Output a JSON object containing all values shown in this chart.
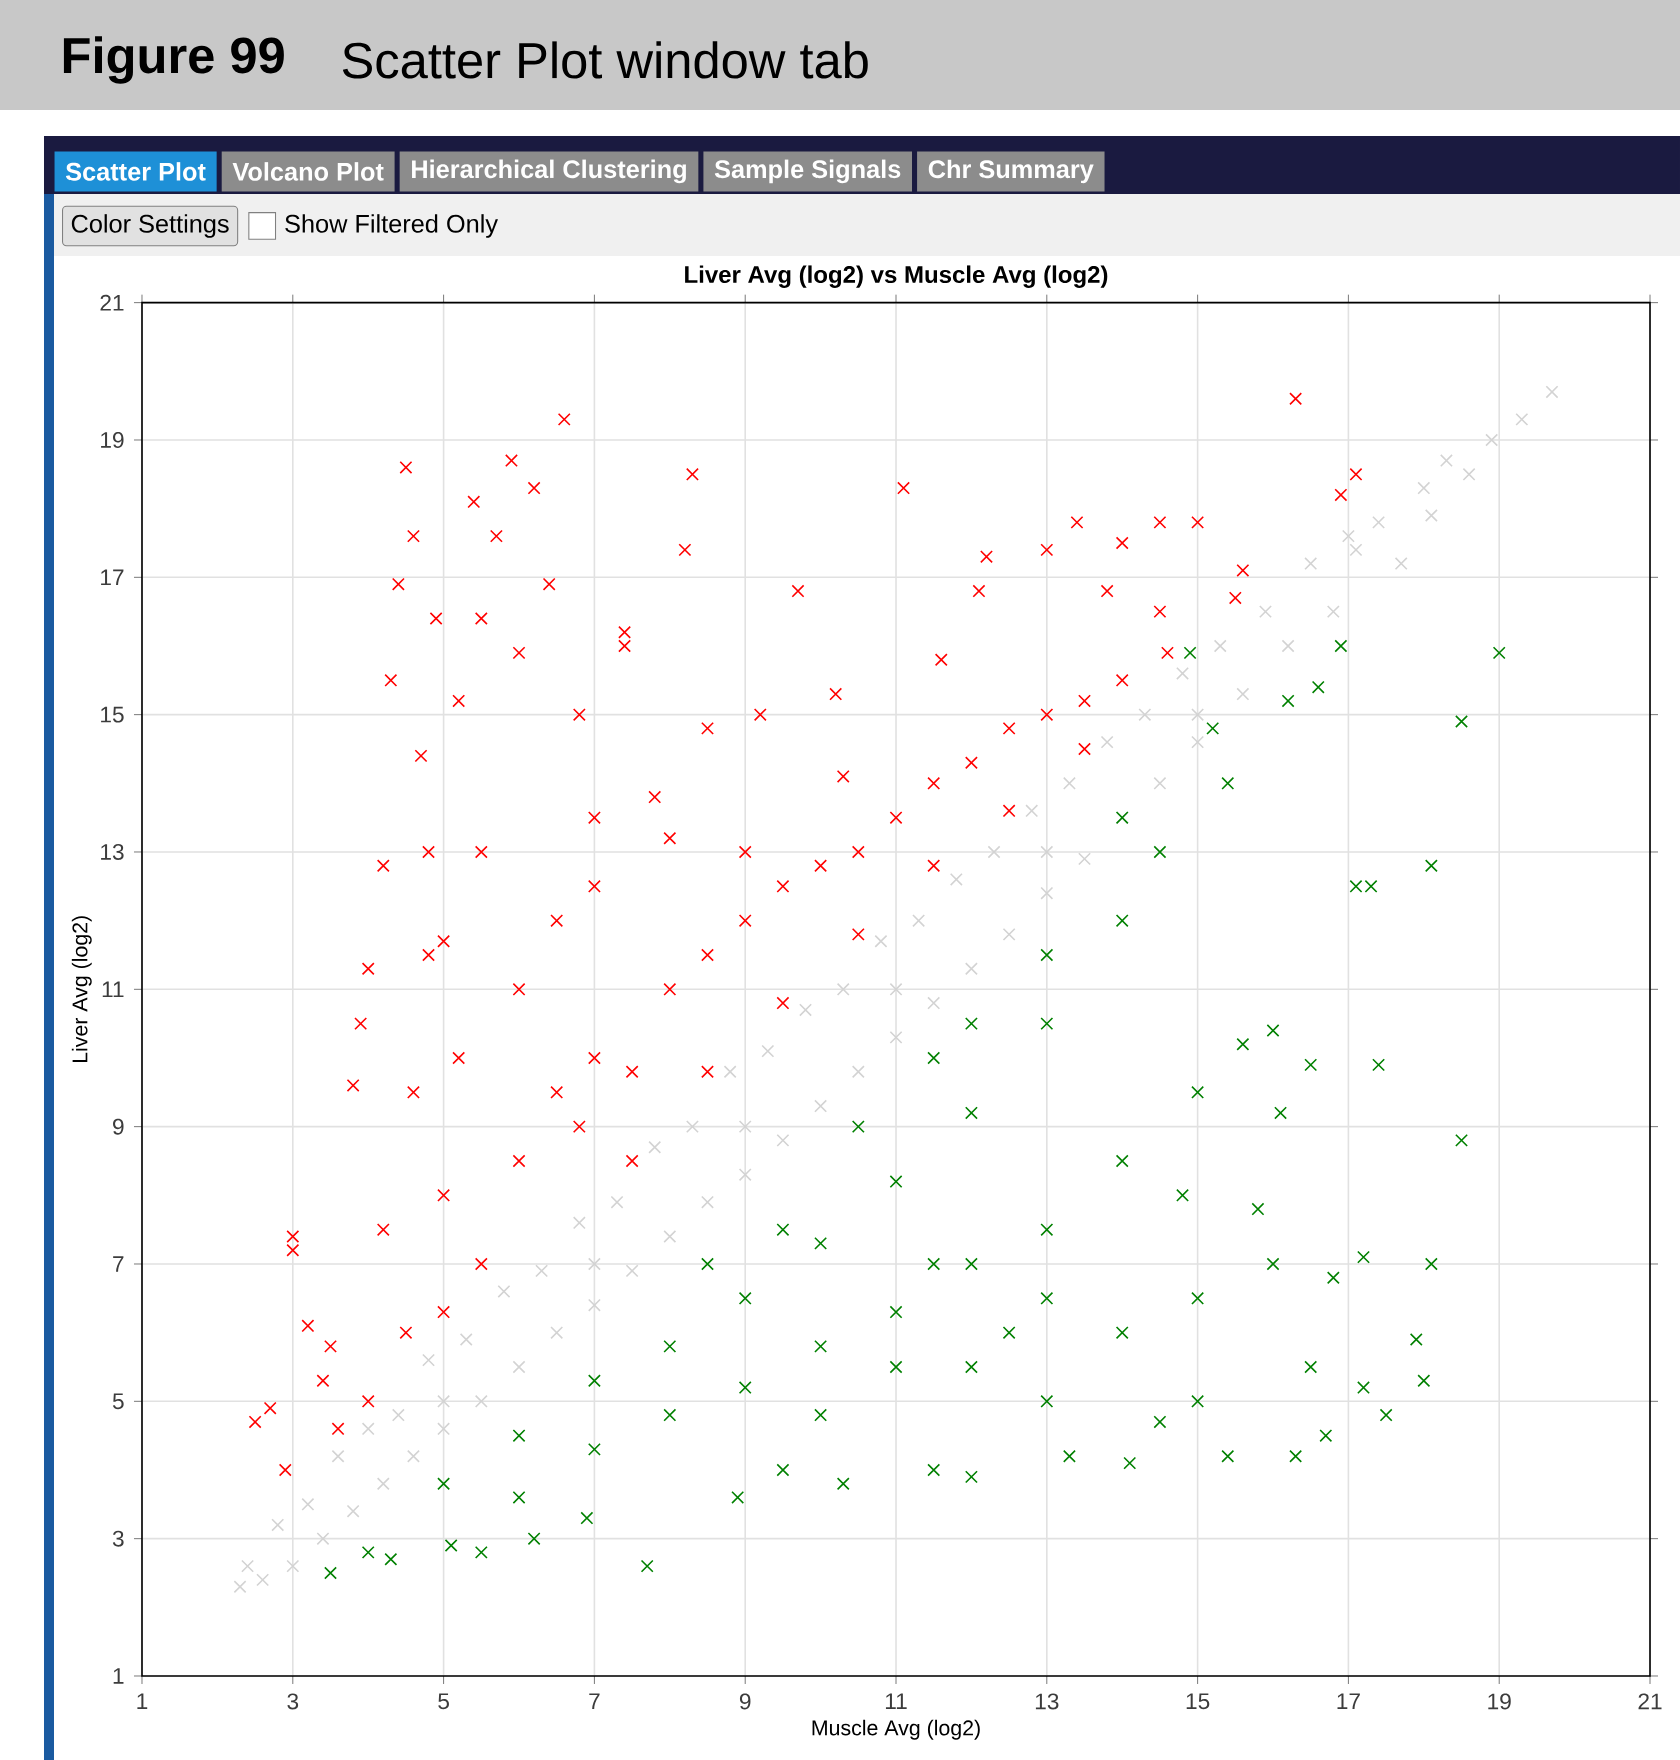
{
  "chart_data": {
    "type": "scatter",
    "title": "Liver Avg (log2) vs Muscle Avg (log2)",
    "xlabel": "Muscle Avg (log2)",
    "ylabel": "Liver Avg (log2)",
    "annotations": [
      "Figure 99",
      "Scatter Plot window tab",
      "Scatter Plot",
      "Volcano Plot",
      "Hierarchical Clustering",
      "Sample Signals",
      "Chr Summary",
      "Color Settings",
      "Show Filtered Only"
    ],
    "xlim": [
      1,
      21
    ],
    "ylim": [
      1,
      21
    ],
    "xticks": [
      1,
      3,
      5,
      7,
      9,
      11,
      13,
      15,
      17,
      19,
      21
    ],
    "yticks": [
      1,
      3,
      5,
      7,
      9,
      11,
      13,
      15,
      17,
      19,
      21
    ],
    "grid": true,
    "marker": "cross",
    "series": [
      {
        "color": "#d3d3d3",
        "x": [
          2.3,
          2.4,
          2.6,
          2.8,
          3.0,
          3.2,
          3.4,
          3.6,
          3.8,
          4.0,
          4.2,
          4.4,
          4.6,
          4.8,
          5.0,
          5.3,
          5.5,
          5.8,
          6.0,
          6.3,
          6.5,
          6.8,
          7.0,
          7.3,
          7.5,
          7.8,
          8.0,
          8.3,
          8.5,
          8.8,
          9.0,
          9.3,
          9.5,
          9.8,
          10.0,
          10.3,
          10.5,
          10.8,
          11.0,
          11.3,
          11.5,
          11.8,
          12.0,
          12.3,
          12.5,
          12.8,
          13.0,
          13.3,
          13.5,
          13.8,
          14.0,
          14.3,
          14.5,
          14.8,
          15.0,
          15.3,
          15.6,
          15.9,
          16.2,
          16.5,
          16.8,
          17.1,
          17.4,
          17.7,
          18.0,
          18.3,
          18.6,
          18.9,
          19.3,
          19.7,
          5,
          7,
          9,
          11,
          13,
          15,
          17,
          18.1
        ],
        "values": [
          2.3,
          2.6,
          2.4,
          3.2,
          2.6,
          3.5,
          3.0,
          4.2,
          3.4,
          4.6,
          3.8,
          4.8,
          4.2,
          5.6,
          4.6,
          5.9,
          5.0,
          6.6,
          5.5,
          6.9,
          6.0,
          7.6,
          6.4,
          7.9,
          6.9,
          8.7,
          7.4,
          9.0,
          7.9,
          9.8,
          8.3,
          10.1,
          8.8,
          10.7,
          9.3,
          11.0,
          9.8,
          11.7,
          10.3,
          12.0,
          10.8,
          12.6,
          11.3,
          13.0,
          11.8,
          13.6,
          12.4,
          14.0,
          12.9,
          14.6,
          13.5,
          15.0,
          14.0,
          15.6,
          14.6,
          16.0,
          15.3,
          16.5,
          16.0,
          17.2,
          16.5,
          17.4,
          17.8,
          17.2,
          18.3,
          18.7,
          18.5,
          19.0,
          19.3,
          19.7,
          5,
          7,
          9,
          11,
          13,
          15,
          17.6,
          17.9
        ]
      },
      {
        "color": "#ff0000",
        "x": [
          2.5,
          2.7,
          2.9,
          3.0,
          3.0,
          3.2,
          3.4,
          3.6,
          3.8,
          3.9,
          4.0,
          4.2,
          4.3,
          4.4,
          4.5,
          4.6,
          4.7,
          4.8,
          4.9,
          5.0,
          5.2,
          5.4,
          5.5,
          5.7,
          5.9,
          6.0,
          6.2,
          6.4,
          6.6,
          6.8,
          7.0,
          7.4,
          7.4,
          7.8,
          8.2,
          8.3,
          8.5,
          9.0,
          9.2,
          9.7,
          10.2,
          10.3,
          11.1,
          11.6,
          12.1,
          12.2,
          13.0,
          13.4,
          13.8,
          14.0,
          14.5,
          14.5,
          15.0,
          15.5,
          15.6,
          16.3,
          17.1,
          16.9,
          5.5,
          6.0,
          6.5,
          7,
          7.5,
          8,
          8.5,
          9,
          9.5,
          10,
          10.5,
          11,
          11.5,
          12,
          12.5,
          13,
          13.5,
          14,
          14.6,
          4.5,
          5,
          4.6,
          5.2,
          6,
          6.5,
          7,
          5.5,
          4.0,
          4.2,
          3.5,
          7.5,
          8.5,
          9.5,
          10.5,
          11.5,
          12.5,
          13.5,
          6.8,
          5.0,
          4.8,
          8
        ],
        "values": [
          4.7,
          4.9,
          4.0,
          7.2,
          7.4,
          6.1,
          5.3,
          4.6,
          9.6,
          10.5,
          11.3,
          12.8,
          15.5,
          16.9,
          18.6,
          17.6,
          14.4,
          13.0,
          16.4,
          11.7,
          15.2,
          18.1,
          16.4,
          17.6,
          18.7,
          15.9,
          18.3,
          16.9,
          19.3,
          15.0,
          13.5,
          16.0,
          16.2,
          13.8,
          17.4,
          18.5,
          14.8,
          13.0,
          15.0,
          16.8,
          15.3,
          14.1,
          18.3,
          15.8,
          16.8,
          17.3,
          17.4,
          17.8,
          16.8,
          17.5,
          16.5,
          17.8,
          17.8,
          16.7,
          17.1,
          19.6,
          18.5,
          18.2,
          7.0,
          8.5,
          9.5,
          10,
          9.8,
          11,
          11.5,
          12,
          12.5,
          12.8,
          13.0,
          13.5,
          14,
          14.3,
          14.8,
          15,
          15.2,
          15.5,
          15.9,
          6.0,
          8,
          9.5,
          10,
          11,
          12,
          12.5,
          13,
          5.0,
          7.5,
          5.8,
          8.5,
          9.8,
          10.8,
          11.8,
          12.8,
          13.6,
          14.5,
          9.0,
          6.3,
          11.5,
          13.2
        ]
      },
      {
        "color": "#008000",
        "x": [
          3.5,
          4.0,
          4.3,
          5.1,
          5.5,
          6.2,
          6.9,
          7.7,
          8.9,
          9.5,
          10.3,
          11.5,
          12.0,
          13.3,
          14.1,
          15.4,
          16.3,
          16.7,
          17.5,
          18.0,
          17.9,
          18.1,
          18.5,
          17.2,
          16.1,
          16.5,
          17.4,
          15.6,
          16.0,
          17.1,
          17.3,
          18.1,
          18.5,
          19.0,
          16.9,
          16.6,
          16.2,
          15.4,
          14.5,
          14.9,
          5,
          6,
          7,
          8,
          9,
          10,
          11,
          12,
          13,
          14,
          6,
          7,
          8,
          9,
          10,
          11,
          12,
          13,
          14,
          15,
          10,
          11,
          12,
          13,
          14,
          15,
          16,
          15,
          14.5,
          13,
          12.5,
          11.5,
          9.5,
          8.5,
          12,
          13,
          14,
          15.2,
          10.5,
          11.5,
          16.5,
          17.2,
          16.8,
          15.8,
          14.8
        ],
        "values": [
          2.5,
          2.8,
          2.7,
          2.9,
          2.8,
          3.0,
          3.3,
          2.6,
          3.6,
          4.0,
          3.8,
          4.0,
          3.9,
          4.2,
          4.1,
          4.2,
          4.2,
          4.5,
          4.8,
          5.3,
          5.9,
          7.0,
          8.8,
          7.1,
          9.2,
          9.9,
          9.9,
          10.2,
          10.4,
          12.5,
          12.5,
          12.8,
          14.9,
          15.9,
          16.0,
          15.4,
          15.2,
          14.0,
          13.0,
          15.9,
          3.8,
          4.5,
          5.3,
          5.8,
          6.5,
          7.3,
          8.2,
          9.2,
          10.5,
          12,
          3.6,
          4.3,
          4.8,
          5.2,
          5.8,
          6.3,
          7.0,
          7.5,
          8.5,
          9.5,
          4.8,
          5.5,
          5.5,
          6.5,
          6.0,
          6.5,
          7,
          5,
          4.7,
          5.0,
          6.0,
          7.0,
          7.5,
          7.0,
          10.5,
          11.5,
          13.5,
          14.8,
          9.0,
          10,
          5.5,
          5.2,
          6.8,
          7.8,
          8.0
        ]
      }
    ]
  }
}
